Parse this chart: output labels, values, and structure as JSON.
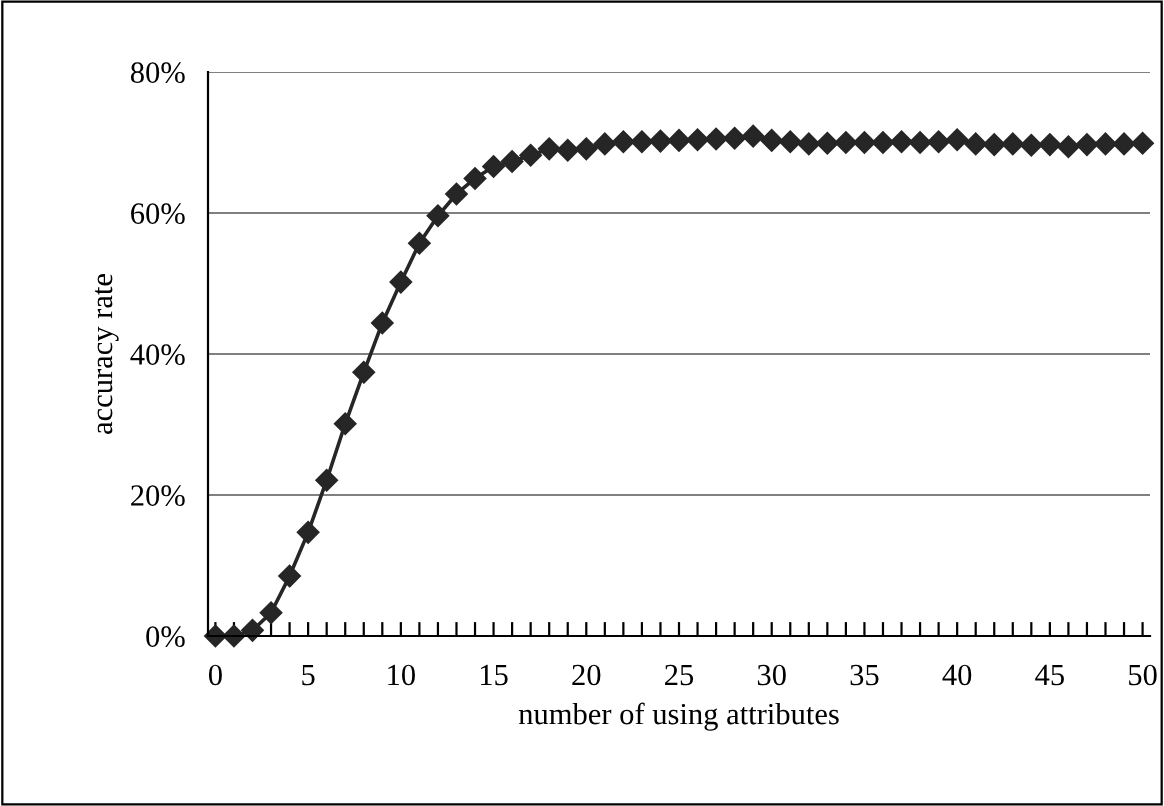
{
  "chart_data": {
    "type": "line",
    "xlabel": "number of using attributes",
    "ylabel": "accuracy rate",
    "x": [
      0,
      1,
      2,
      3,
      4,
      5,
      6,
      7,
      8,
      9,
      10,
      11,
      12,
      13,
      14,
      15,
      16,
      17,
      18,
      19,
      20,
      21,
      22,
      23,
      24,
      25,
      26,
      27,
      28,
      29,
      30,
      31,
      32,
      33,
      34,
      35,
      36,
      37,
      38,
      39,
      40,
      41,
      42,
      43,
      44,
      45,
      46,
      47,
      48,
      49,
      50
    ],
    "series": [
      {
        "color": "#262626",
        "values": [
          0,
          0,
          0.8,
          3.3,
          8.5,
          14.7,
          22.1,
          30.1,
          37.4,
          44.4,
          50.2,
          55.7,
          59.6,
          62.7,
          64.9,
          66.6,
          67.3,
          68.2,
          69.1,
          68.9,
          69.1,
          69.8,
          70.1,
          70.1,
          70.2,
          70.3,
          70.4,
          70.5,
          70.6,
          70.9,
          70.3,
          70.1,
          69.8,
          69.9,
          70.0,
          70.0,
          70.0,
          70.1,
          70.0,
          70.1,
          70.4,
          69.8,
          69.7,
          69.8,
          69.6,
          69.7,
          69.4,
          69.7,
          69.8,
          69.8,
          69.9
        ]
      }
    ],
    "xlim": [
      -0.4,
      50.4
    ],
    "xticks": [
      0,
      {
        "value": 1,
        "label": null
      },
      {
        "value": 2,
        "label": null
      },
      {
        "value": 3,
        "label": null
      },
      {
        "value": 4,
        "label": null
      },
      5,
      {
        "value": 6,
        "label": null
      },
      {
        "value": 7,
        "label": null
      },
      {
        "value": 8,
        "label": null
      },
      {
        "value": 9,
        "label": null
      },
      10,
      {
        "value": 11,
        "label": null
      },
      {
        "value": 12,
        "label": null
      },
      {
        "value": 13,
        "label": null
      },
      {
        "value": 14,
        "label": null
      },
      15,
      {
        "value": 16,
        "label": null
      },
      {
        "value": 17,
        "label": null
      },
      {
        "value": 18,
        "label": null
      },
      {
        "value": 19,
        "label": null
      },
      20,
      {
        "value": 21,
        "label": null
      },
      {
        "value": 22,
        "label": null
      },
      {
        "value": 23,
        "label": null
      },
      {
        "value": 24,
        "label": null
      },
      25,
      {
        "value": 26,
        "label": null
      },
      {
        "value": 27,
        "label": null
      },
      {
        "value": 28,
        "label": null
      },
      {
        "value": 29,
        "label": null
      },
      30,
      {
        "value": 31,
        "label": null
      },
      {
        "value": 32,
        "label": null
      },
      {
        "value": 33,
        "label": null
      },
      {
        "value": 34,
        "label": null
      },
      35,
      {
        "value": 36,
        "label": null
      },
      {
        "value": 37,
        "label": null
      },
      {
        "value": 38,
        "label": null
      },
      {
        "value": 39,
        "label": null
      },
      40,
      {
        "value": 41,
        "label": null
      },
      {
        "value": 42,
        "label": null
      },
      {
        "value": 43,
        "label": null
      },
      {
        "value": 44,
        "label": null
      },
      45,
      {
        "value": 46,
        "label": null
      },
      {
        "value": 47,
        "label": null
      },
      {
        "value": 48,
        "label": null
      },
      {
        "value": 49,
        "label": null
      },
      50
    ],
    "ylim": [
      0,
      80
    ],
    "yticks": [
      {
        "value": 0,
        "label": "0%"
      },
      {
        "value": 20,
        "label": "20%"
      },
      {
        "value": 40,
        "label": "40%"
      },
      {
        "value": 60,
        "label": "60%"
      },
      {
        "value": 80,
        "label": "80%"
      }
    ],
    "grid": "y",
    "marker": "diamond",
    "line_style": "solid",
    "legend": false
  }
}
